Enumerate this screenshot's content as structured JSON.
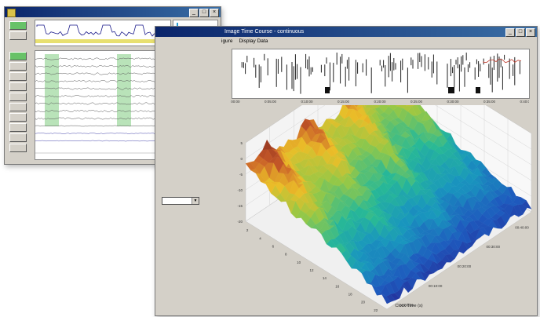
{
  "back_window": {
    "title": "",
    "win_buttons": [
      "_",
      "□",
      "×"
    ],
    "sidebar_buttons": [
      {
        "color": "#68c268"
      },
      {
        "color": "#d4d0c8"
      },
      {
        "color": "#68c268"
      },
      {
        "color": "#d4d0c8"
      },
      {
        "color": "#d4d0c8"
      },
      {
        "color": "#d4d0c8"
      },
      {
        "color": "#d4d0c8"
      },
      {
        "color": "#d4d0c8"
      },
      {
        "color": "#d4d0c8"
      },
      {
        "color": "#d4d0c8"
      },
      {
        "color": "#d4d0c8"
      },
      {
        "color": "#d4d0c8"
      }
    ]
  },
  "front_window": {
    "title": "Image Time Course - continuous",
    "menu": [
      "igure",
      "Display Data"
    ],
    "win_buttons": [
      "_",
      "□",
      "×"
    ],
    "selector_value": "",
    "raster_x_ticks": [
      "0:00:00",
      "0:05:00",
      "0:10:00",
      "0:15:00",
      "0:20:00",
      "0:25:00",
      "0:30:00",
      "0:35:00",
      "0:40:00"
    ],
    "surface": {
      "z_ticks": [
        "-20",
        "-15",
        "-10",
        "-5",
        "0",
        "5"
      ],
      "x_ticks": [
        "2",
        "4",
        "6",
        "8",
        "10",
        "12",
        "14",
        "16",
        "18",
        "20",
        "22"
      ],
      "time_ticks": [
        "00:00:00",
        "00:10:00",
        "00:20:00",
        "00:30:00",
        "00:40:00"
      ],
      "time_label": "Clock Time (s)"
    }
  },
  "colors": {
    "titlebar_start": "#0a246a",
    "titlebar_end": "#3a6ea5",
    "window_face": "#d4d0c8",
    "highlight_green": "#a8dca8",
    "histogram_blue": "#2a9fd6"
  }
}
